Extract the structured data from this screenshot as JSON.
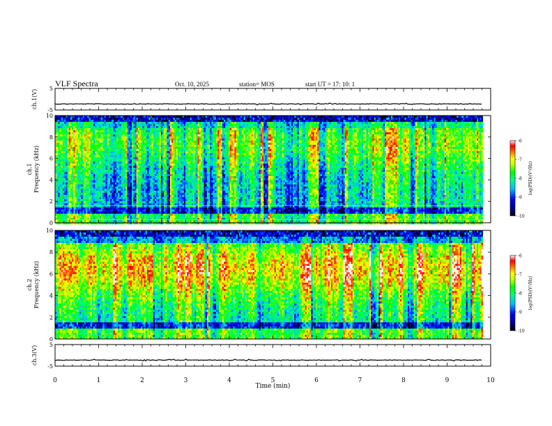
{
  "header": {
    "title": "VLF Spectra",
    "date": "Oct. 10, 2025",
    "station": "station= MOS",
    "start": "start  UT =   17: 10: 1"
  },
  "colors": {
    "background": "#ffffff",
    "axis": "#000000",
    "colormap": [
      "#000000",
      "#00008b",
      "#0000ff",
      "#00bfff",
      "#00ffb0",
      "#00ff00",
      "#b0ff00",
      "#ffff00",
      "#ff8c00",
      "#ff0000",
      "#ffb0b0",
      "#ffffff"
    ]
  },
  "chart_data": [
    {
      "type": "line",
      "name": "ch1-waveform",
      "ylabel": "ch.1(V)",
      "ylim": [
        -5,
        5
      ],
      "y_ticks": [
        "5",
        "-5"
      ],
      "baseline": -2.2,
      "xlim": [
        0,
        10
      ]
    },
    {
      "type": "heatmap",
      "name": "ch1-spectrogram",
      "ylabel": "ch.1\nFrequency (kHz)",
      "ylim": [
        0,
        10
      ],
      "y_ticks": [
        "0",
        "2",
        "4",
        "6",
        "8",
        "10"
      ],
      "data_end_min": 9.82,
      "band_khz": [
        1.6,
        9.0
      ],
      "colorbar": {
        "label": "log(PSD)(V²/Hz)",
        "range": [
          -10,
          -6
        ],
        "ticks": [
          "-6",
          "-7",
          "-8",
          "-9",
          "-10"
        ]
      }
    },
    {
      "type": "heatmap",
      "name": "ch2-spectrogram",
      "ylabel": "ch.2\nFrequency (kHz)",
      "ylim": [
        0,
        10
      ],
      "y_ticks": [
        "0",
        "2",
        "4",
        "6",
        "8",
        "10"
      ],
      "data_end_min": 9.82,
      "band_khz": [
        1.6,
        9.0
      ],
      "colorbar": {
        "label": "log(PSD)(V²/Hz)",
        "range": [
          -10,
          -6
        ],
        "ticks": [
          "-6",
          "-7",
          "-8",
          "-9",
          "-10"
        ]
      }
    },
    {
      "type": "line",
      "name": "ch3-waveform",
      "ylabel": "ch.3(V)",
      "ylim": [
        -5,
        5
      ],
      "y_ticks": [
        "5",
        "-5"
      ],
      "baseline": -2.2,
      "xlim": [
        0,
        10
      ]
    }
  ],
  "x_axis": {
    "label": "Time  (min)",
    "range": [
      0,
      10
    ],
    "ticks": [
      "0",
      "1",
      "2",
      "3",
      "4",
      "5",
      "6",
      "7",
      "8",
      "9",
      "10"
    ]
  }
}
